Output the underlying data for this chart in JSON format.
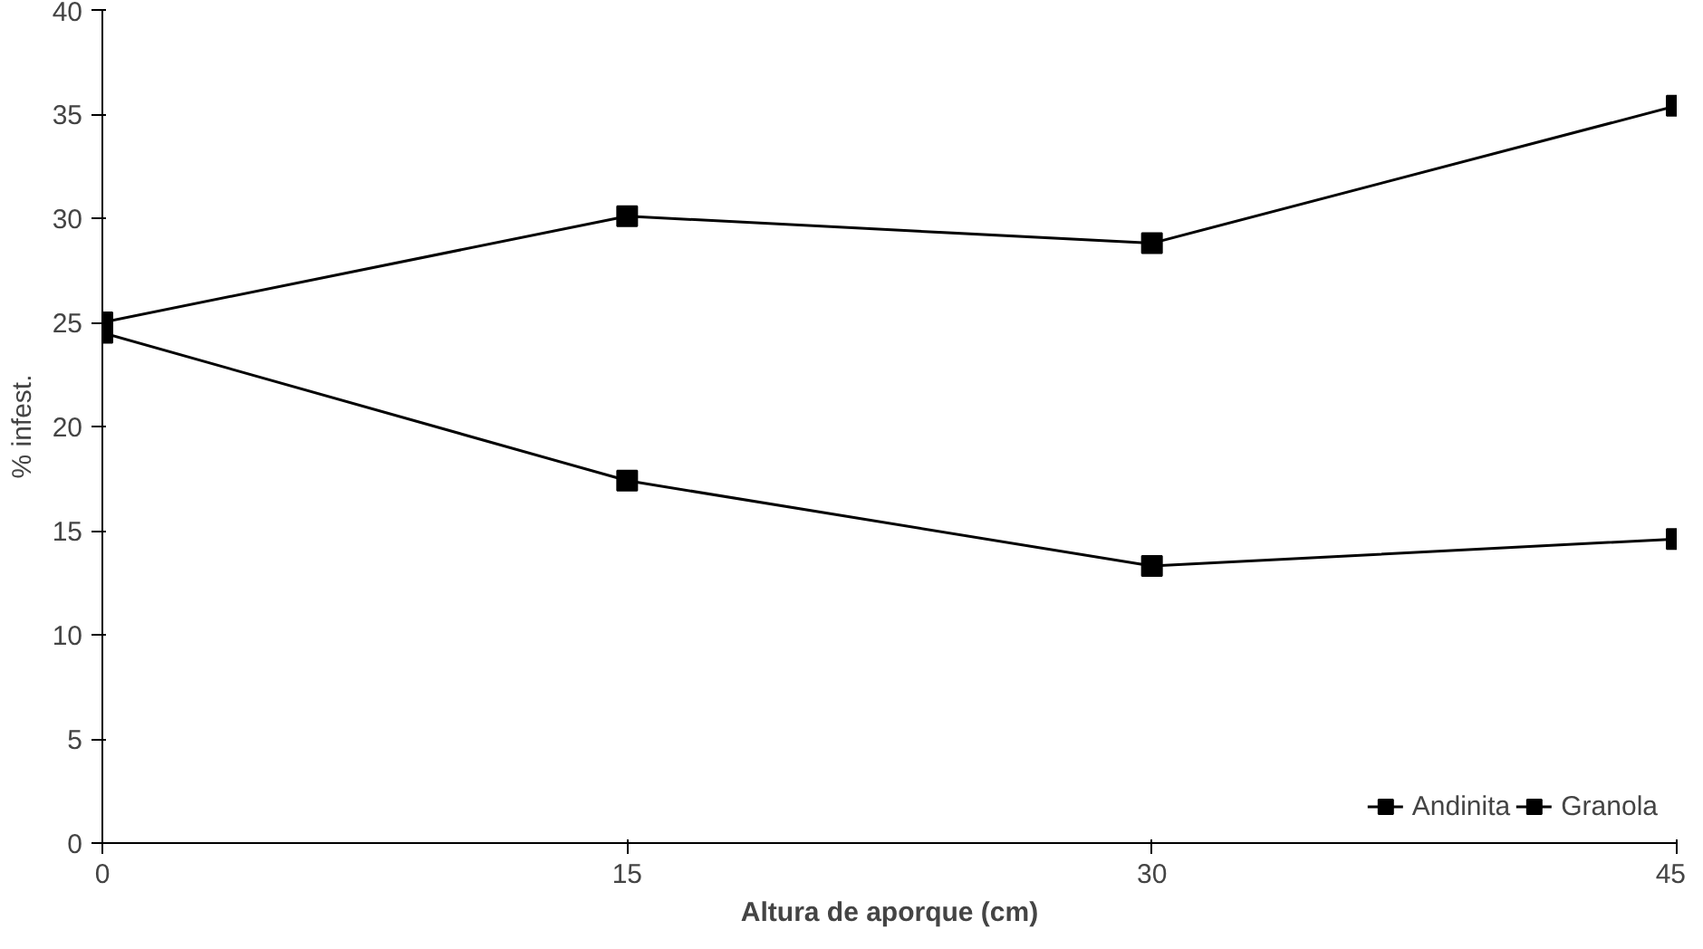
{
  "chart_data": {
    "type": "line",
    "xlabel": "Altura de aporque (cm)",
    "ylabel": "% infest.",
    "x": [
      0,
      15,
      30,
      45
    ],
    "series": [
      {
        "name": "Andinita",
        "color": "#000000",
        "values": [
          24.5,
          17.4,
          13.3,
          14.6
        ]
      },
      {
        "name": "Granola",
        "color": "#000000",
        "values": [
          25.0,
          30.1,
          28.8,
          35.4
        ]
      }
    ],
    "xlim": [
      0,
      45
    ],
    "ylim": [
      0,
      40
    ],
    "xticks": [
      0,
      15,
      30,
      45
    ],
    "yticks": [
      0,
      5,
      10,
      15,
      20,
      25,
      30,
      35,
      40
    ],
    "grid": false,
    "legend": "bottom right",
    "marker": "square",
    "line_style": "solid"
  }
}
